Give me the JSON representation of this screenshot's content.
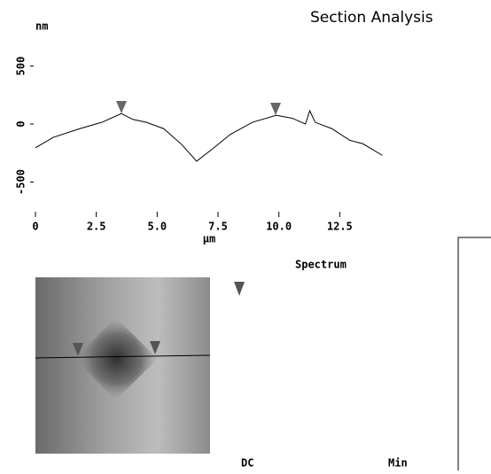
{
  "header": {
    "title": "Section Analysis"
  },
  "chart_data": {
    "type": "line",
    "y_label": "nm",
    "x_label": "µm",
    "x": [
      0,
      0.73,
      1.82,
      2.73,
      3.53,
      4.0,
      4.55,
      5.27,
      6.0,
      6.62,
      7.27,
      8.0,
      8.91,
      9.89,
      10.55,
      11.09,
      11.27,
      11.49,
      12.18,
      12.91,
      13.45,
      14.25
    ],
    "values": [
      -205,
      -115,
      -40,
      15,
      90,
      40,
      15,
      -40,
      -175,
      -320,
      -215,
      -90,
      15,
      75,
      50,
      0,
      115,
      15,
      -40,
      -140,
      -170,
      -270
    ],
    "color": "#000000",
    "xlim": [
      0,
      15
    ],
    "ylim": [
      -700,
      700
    ],
    "xticks": [
      0,
      2.5,
      {
        "value": 5,
        "label": "5.0"
      },
      7.5,
      {
        "value": 10,
        "label": "10.0"
      },
      12.5
    ],
    "yticks": [
      -500,
      0,
      500
    ]
  },
  "spectrum": {
    "title": "Spectrum",
    "labels": [
      "DC",
      "Min"
    ]
  }
}
